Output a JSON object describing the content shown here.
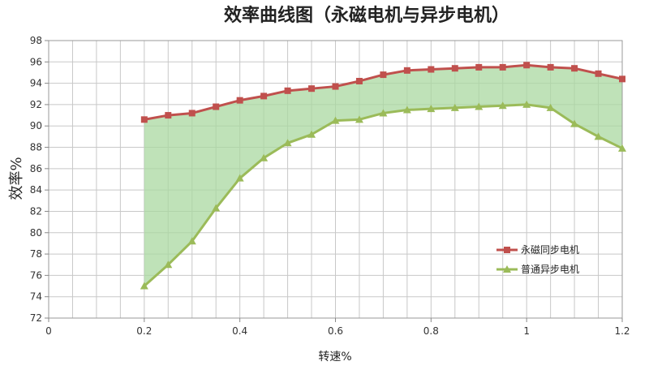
{
  "chart_data": {
    "type": "line",
    "title": "效率曲线图（永磁电机与异步电机）",
    "xlabel": "转速%",
    "ylabel": "效率%",
    "xlim": [
      0,
      1.2
    ],
    "ylim": [
      72,
      98
    ],
    "xticks": [
      "0",
      "0.2",
      "0.4",
      "0.6",
      "0.8",
      "1",
      "1.2"
    ],
    "yticks": [
      "72",
      "74",
      "76",
      "78",
      "80",
      "82",
      "84",
      "86",
      "88",
      "90",
      "92",
      "94",
      "96",
      "98"
    ],
    "grid": true,
    "legend_position": "lower-right",
    "fill_between_series": true,
    "fill_color": "#a9d8a0",
    "x": [
      0.2,
      0.25,
      0.3,
      0.35,
      0.4,
      0.45,
      0.5,
      0.55,
      0.6,
      0.65,
      0.7,
      0.75,
      0.8,
      0.85,
      0.9,
      0.95,
      1.0,
      1.05,
      1.1,
      1.15,
      1.2
    ],
    "series": [
      {
        "name": "永磁同步电机",
        "color": "#c0504d",
        "marker": "square",
        "values": [
          90.6,
          91.0,
          91.2,
          91.8,
          92.4,
          92.8,
          93.3,
          93.5,
          93.7,
          94.2,
          94.8,
          95.2,
          95.3,
          95.4,
          95.5,
          95.5,
          95.7,
          95.5,
          95.4,
          94.9,
          94.4
        ]
      },
      {
        "name": "普通异步电机",
        "color": "#9bbb59",
        "marker": "triangle",
        "values": [
          75.0,
          77.0,
          79.2,
          82.3,
          85.1,
          87.0,
          88.4,
          89.2,
          90.5,
          90.6,
          91.2,
          91.5,
          91.6,
          91.7,
          91.8,
          91.9,
          92.0,
          91.7,
          90.2,
          89.0,
          87.9
        ]
      }
    ]
  }
}
